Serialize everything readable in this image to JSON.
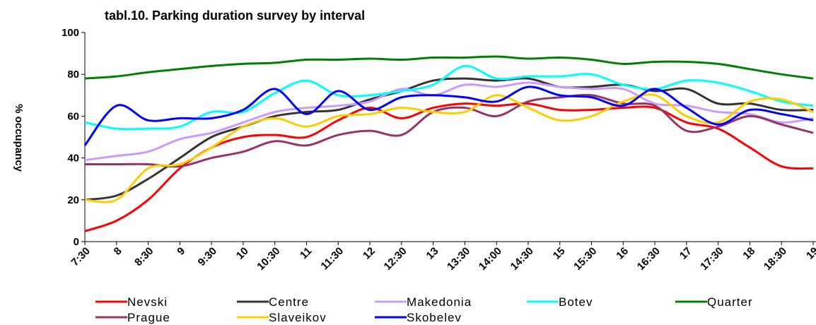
{
  "chart_data": {
    "type": "line",
    "title": "tabl.10. Parking duration survey by interval",
    "y_label": "% occupancy",
    "categories": [
      "7:30",
      "8",
      "8:30",
      "9",
      "9:30",
      "10",
      "10:30",
      "11",
      "11:30",
      "12",
      "12:30",
      "13",
      "13:30",
      "14:00",
      "14:30",
      "15",
      "15:30",
      "16",
      "16:30",
      "17",
      "17:30",
      "18",
      "18:30",
      "19"
    ],
    "ylim": [
      0,
      100
    ],
    "yticks": [
      0,
      20,
      40,
      60,
      80,
      100
    ],
    "smooth": true,
    "series": [
      {
        "name": "Nevski",
        "color": "#ff0000",
        "values": [
          5,
          10,
          20,
          35,
          45,
          50,
          51,
          50,
          58,
          64,
          59,
          64,
          66,
          65,
          66,
          63,
          63,
          64,
          64,
          57,
          54,
          45,
          36,
          35
        ]
      },
      {
        "name": "Centre",
        "color": "#333333",
        "values": [
          20,
          22,
          30,
          40,
          50,
          55,
          60,
          62,
          63,
          68,
          72,
          77,
          78,
          77,
          78,
          74,
          74,
          75,
          72,
          73,
          66,
          66,
          63,
          63
        ]
      },
      {
        "name": "Makedonia",
        "color": "#cc99ff",
        "values": [
          39,
          41,
          43,
          49,
          52,
          57,
          62,
          64,
          65,
          67,
          73,
          70,
          75,
          74,
          76,
          74,
          73,
          73,
          66,
          65,
          62,
          61,
          57,
          59
        ]
      },
      {
        "name": "Botev",
        "color": "#00ffff",
        "values": [
          57,
          54,
          54,
          55,
          62,
          62,
          71,
          77,
          70,
          70,
          72,
          75,
          84,
          78,
          79,
          79,
          80,
          75,
          73,
          77,
          76,
          72,
          67,
          65
        ]
      },
      {
        "name": "Quarter",
        "color": "#008000",
        "values": [
          78,
          79,
          81,
          82.5,
          84,
          85,
          85.5,
          87,
          87,
          87.5,
          87,
          88,
          88,
          88.5,
          87.5,
          88,
          87,
          85,
          86,
          86,
          85,
          82.5,
          80,
          78
        ]
      },
      {
        "name": "Prague",
        "color": "#993366",
        "values": [
          37,
          37,
          37,
          36,
          40,
          43,
          48,
          46,
          51,
          53,
          51,
          62,
          64,
          60,
          67,
          69,
          70,
          66,
          65,
          53,
          55,
          60,
          56,
          52
        ]
      },
      {
        "name": "Slaveikov",
        "color": "#ffcc00",
        "values": [
          20,
          20,
          35,
          37,
          45,
          55,
          59,
          55,
          60,
          61,
          64,
          62,
          62,
          70,
          64,
          58,
          60,
          67,
          70,
          60,
          57,
          67,
          68,
          62
        ]
      },
      {
        "name": "Skobelev",
        "color": "#0000ff",
        "values": [
          46,
          65,
          58,
          59,
          59,
          63,
          73,
          61,
          72,
          63,
          69,
          70,
          69,
          67,
          74,
          70,
          69,
          65,
          73,
          64,
          56,
          63,
          61,
          58
        ]
      }
    ]
  }
}
